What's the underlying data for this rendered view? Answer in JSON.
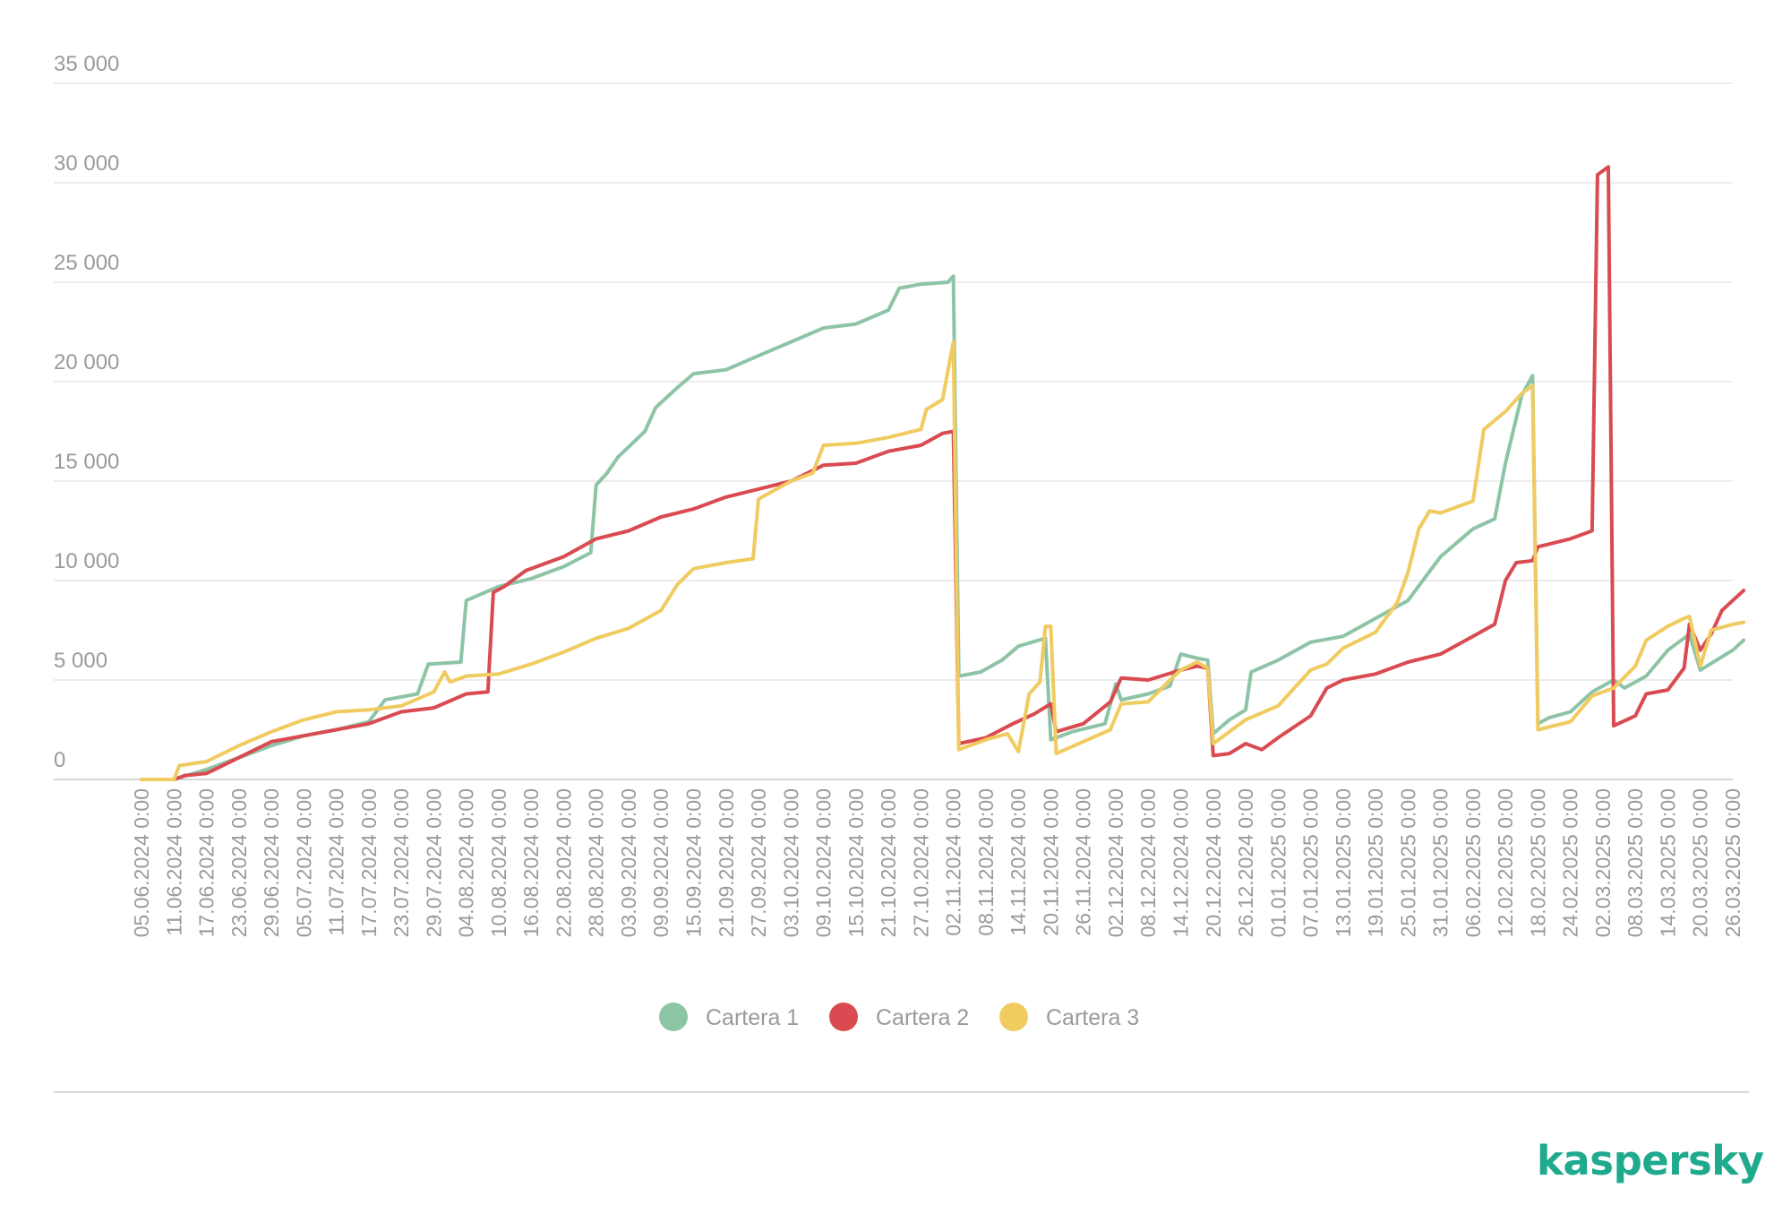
{
  "colors": {
    "background": "#ffffff",
    "grid": "#e6e6e6",
    "text": "#9a9a9a",
    "brand": "#1faa8e"
  },
  "brand": {
    "logo_text": "kaspersky"
  },
  "chart_data": {
    "type": "line",
    "title": "",
    "xlabel": "",
    "ylabel": "",
    "ylim": [
      0,
      35000
    ],
    "grid": true,
    "legend_position": "bottom-center",
    "y_ticks": [
      {
        "value": 0,
        "label": "0"
      },
      {
        "value": 5000,
        "label": "5 000"
      },
      {
        "value": 10000,
        "label": "10 000"
      },
      {
        "value": 15000,
        "label": "15 000"
      },
      {
        "value": 20000,
        "label": "20 000"
      },
      {
        "value": 25000,
        "label": "25 000"
      },
      {
        "value": 30000,
        "label": "30 000"
      },
      {
        "value": 35000,
        "label": "35 000"
      }
    ],
    "x_ticks": [
      "05.06.2024 0:00",
      "11.06.2024 0:00",
      "17.06.2024 0:00",
      "23.06.2024 0:00",
      "29.06.2024 0:00",
      "05.07.2024 0:00",
      "11.07.2024 0:00",
      "17.07.2024 0:00",
      "23.07.2024 0:00",
      "29.07.2024 0:00",
      "04.08.2024 0:00",
      "10.08.2024 0:00",
      "16.08.2024 0:00",
      "22.08.2024 0:00",
      "28.08.2024 0:00",
      "03.09.2024 0:00",
      "09.09.2024 0:00",
      "15.09.2024 0:00",
      "21.09.2024 0:00",
      "27.09.2024 0:00",
      "03.10.2024 0:00",
      "09.10.2024 0:00",
      "15.10.2024 0:00",
      "21.10.2024 0:00",
      "27.10.2024 0:00",
      "02.11.2024 0:00",
      "08.11.2024 0:00",
      "14.11.2024 0:00",
      "20.11.2024 0:00",
      "26.11.2024 0:00",
      "02.12.2024 0:00",
      "08.12.2024 0:00",
      "14.12.2024 0:00",
      "20.12.2024 0:00",
      "26.12.2024 0:00",
      "01.01.2025 0:00",
      "07.01.2025 0:00",
      "13.01.2025 0:00",
      "19.01.2025 0:00",
      "25.01.2025 0:00",
      "31.01.2025 0:00",
      "06.02.2025 0:00",
      "12.02.2025 0:00",
      "18.02.2025 0:00",
      "24.02.2025 0:00",
      "02.03.2025 0:00",
      "08.03.2025 0:00",
      "14.03.2025 0:00",
      "20.03.2025 0:00",
      "26.03.2025 0:00"
    ],
    "categories": [
      "05.06.2024",
      "11.06.2024",
      "17.06.2024",
      "23.06.2024",
      "29.06.2024",
      "05.07.2024",
      "11.07.2024",
      "17.07.2024",
      "23.07.2024",
      "29.07.2024",
      "04.08.2024",
      "10.08.2024",
      "16.08.2024",
      "22.08.2024",
      "28.08.2024",
      "03.09.2024",
      "09.09.2024",
      "15.09.2024",
      "21.09.2024",
      "27.09.2024",
      "03.10.2024",
      "09.10.2024",
      "15.10.2024",
      "21.10.2024",
      "27.10.2024",
      "02.11.2024",
      "08.11.2024",
      "14.11.2024",
      "20.11.2024",
      "26.11.2024",
      "02.12.2024",
      "08.12.2024",
      "14.12.2024",
      "20.12.2024",
      "26.12.2024",
      "01.01.2025",
      "07.01.2025",
      "13.01.2025",
      "19.01.2025",
      "25.01.2025",
      "31.01.2025",
      "06.02.2025",
      "12.02.2025",
      "18.02.2025",
      "24.02.2025",
      "02.03.2025",
      "08.03.2025",
      "14.03.2025",
      "20.03.2025",
      "26.03.2025"
    ],
    "series": [
      {
        "name": "Cartera 1",
        "color": "#8ec4a6",
        "points": [
          [
            "05.06.2024",
            0
          ],
          [
            "11.06.2024",
            0
          ],
          [
            "17.06.2024",
            500
          ],
          [
            "23.06.2024",
            1100
          ],
          [
            "29.06.2024",
            1700
          ],
          [
            "05.07.2024",
            2200
          ],
          [
            "11.07.2024",
            2500
          ],
          [
            "17.07.2024",
            2900
          ],
          [
            "20.07.2024",
            4000
          ],
          [
            "26.07.2024",
            4300
          ],
          [
            "28.07.2024",
            5800
          ],
          [
            "03.08.2024",
            5900
          ],
          [
            "04.08.2024",
            9000
          ],
          [
            "10.08.2024",
            9700
          ],
          [
            "16.08.2024",
            10100
          ],
          [
            "22.08.2024",
            10700
          ],
          [
            "27.08.2024",
            11400
          ],
          [
            "28.08.2024",
            14800
          ],
          [
            "30.08.2024",
            15400
          ],
          [
            "01.09.2024",
            16200
          ],
          [
            "06.09.2024",
            17500
          ],
          [
            "08.09.2024",
            18700
          ],
          [
            "12.09.2024",
            19700
          ],
          [
            "15.09.2024",
            20400
          ],
          [
            "21.09.2024",
            20600
          ],
          [
            "27.09.2024",
            21300
          ],
          [
            "03.10.2024",
            22000
          ],
          [
            "09.10.2024",
            22700
          ],
          [
            "15.10.2024",
            22900
          ],
          [
            "21.10.2024",
            23600
          ],
          [
            "23.10.2024",
            24700
          ],
          [
            "27.10.2024",
            24900
          ],
          [
            "01.11.2024",
            25000
          ],
          [
            "02.11.2024",
            25300
          ],
          [
            "03.11.2024",
            5200
          ],
          [
            "07.11.2024",
            5400
          ],
          [
            "11.11.2024",
            6000
          ],
          [
            "14.11.2024",
            6700
          ],
          [
            "19.11.2024",
            7100
          ],
          [
            "20.11.2024",
            2000
          ],
          [
            "24.11.2024",
            2400
          ],
          [
            "30.11.2024",
            2800
          ],
          [
            "02.12.2024",
            4800
          ],
          [
            "03.12.2024",
            4000
          ],
          [
            "08.12.2024",
            4300
          ],
          [
            "12.12.2024",
            4700
          ],
          [
            "14.12.2024",
            6300
          ],
          [
            "17.12.2024",
            6100
          ],
          [
            "19.12.2024",
            6000
          ],
          [
            "20.12.2024",
            2300
          ],
          [
            "23.12.2024",
            3000
          ],
          [
            "26.12.2024",
            3500
          ],
          [
            "27.12.2024",
            5400
          ],
          [
            "01.01.2025",
            6000
          ],
          [
            "07.01.2025",
            6900
          ],
          [
            "13.01.2025",
            7200
          ],
          [
            "19.01.2025",
            8100
          ],
          [
            "25.01.2025",
            9000
          ],
          [
            "31.01.2025",
            11200
          ],
          [
            "06.02.2025",
            12600
          ],
          [
            "10.02.2025",
            13100
          ],
          [
            "12.02.2025",
            15900
          ],
          [
            "15.02.2025",
            19300
          ],
          [
            "17.02.2025",
            20300
          ],
          [
            "18.02.2025",
            2800
          ],
          [
            "20.02.2025",
            3100
          ],
          [
            "24.02.2025",
            3400
          ],
          [
            "28.02.2025",
            4400
          ],
          [
            "04.03.2025",
            5000
          ],
          [
            "06.03.2025",
            4600
          ],
          [
            "10.03.2025",
            5200
          ],
          [
            "14.03.2025",
            6500
          ],
          [
            "18.03.2025",
            7300
          ],
          [
            "20.03.2025",
            5500
          ],
          [
            "26.03.2025",
            6500
          ],
          [
            "28.03.2025",
            7000
          ]
        ]
      },
      {
        "name": "Cartera 2",
        "color": "#d94b50",
        "points": [
          [
            "05.06.2024",
            0
          ],
          [
            "11.06.2024",
            0
          ],
          [
            "13.06.2024",
            200
          ],
          [
            "17.06.2024",
            300
          ],
          [
            "23.06.2024",
            1100
          ],
          [
            "29.06.2024",
            1900
          ],
          [
            "05.07.2024",
            2200
          ],
          [
            "11.07.2024",
            2500
          ],
          [
            "17.07.2024",
            2800
          ],
          [
            "23.07.2024",
            3400
          ],
          [
            "29.07.2024",
            3600
          ],
          [
            "04.08.2024",
            4300
          ],
          [
            "08.08.2024",
            4400
          ],
          [
            "09.08.2024",
            9400
          ],
          [
            "11.08.2024",
            9700
          ],
          [
            "15.08.2024",
            10500
          ],
          [
            "22.08.2024",
            11200
          ],
          [
            "28.08.2024",
            12100
          ],
          [
            "03.09.2024",
            12500
          ],
          [
            "09.09.2024",
            13200
          ],
          [
            "15.09.2024",
            13600
          ],
          [
            "21.09.2024",
            14200
          ],
          [
            "27.09.2024",
            14600
          ],
          [
            "03.10.2024",
            15000
          ],
          [
            "09.10.2024",
            15800
          ],
          [
            "15.10.2024",
            15900
          ],
          [
            "21.10.2024",
            16500
          ],
          [
            "27.10.2024",
            16800
          ],
          [
            "31.10.2024",
            17400
          ],
          [
            "02.11.2024",
            17500
          ],
          [
            "03.11.2024",
            1800
          ],
          [
            "08.11.2024",
            2100
          ],
          [
            "13.11.2024",
            2800
          ],
          [
            "17.11.2024",
            3300
          ],
          [
            "20.11.2024",
            3800
          ],
          [
            "21.11.2024",
            2400
          ],
          [
            "26.11.2024",
            2800
          ],
          [
            "01.12.2024",
            3900
          ],
          [
            "03.12.2024",
            5100
          ],
          [
            "08.12.2024",
            5000
          ],
          [
            "14.12.2024",
            5500
          ],
          [
            "17.12.2024",
            5700
          ],
          [
            "19.12.2024",
            5600
          ],
          [
            "20.12.2024",
            1200
          ],
          [
            "23.12.2024",
            1300
          ],
          [
            "26.12.2024",
            1800
          ],
          [
            "29.12.2024",
            1500
          ],
          [
            "01.01.2025",
            2100
          ],
          [
            "07.01.2025",
            3200
          ],
          [
            "10.01.2025",
            4600
          ],
          [
            "13.01.2025",
            5000
          ],
          [
            "19.01.2025",
            5300
          ],
          [
            "25.01.2025",
            5900
          ],
          [
            "31.01.2025",
            6300
          ],
          [
            "06.02.2025",
            7200
          ],
          [
            "10.02.2025",
            7800
          ],
          [
            "12.02.2025",
            10000
          ],
          [
            "14.02.2025",
            10900
          ],
          [
            "17.02.2025",
            11000
          ],
          [
            "18.02.2025",
            11700
          ],
          [
            "24.02.2025",
            12100
          ],
          [
            "28.02.2025",
            12500
          ],
          [
            "01.03.2025",
            30400
          ],
          [
            "03.03.2025",
            30800
          ],
          [
            "04.03.2025",
            2700
          ],
          [
            "08.03.2025",
            3200
          ],
          [
            "10.03.2025",
            4300
          ],
          [
            "14.03.2025",
            4500
          ],
          [
            "17.03.2025",
            5600
          ],
          [
            "18.03.2025",
            7800
          ],
          [
            "20.03.2025",
            6500
          ],
          [
            "22.03.2025",
            7300
          ],
          [
            "24.03.2025",
            8500
          ],
          [
            "26.03.2025",
            9000
          ],
          [
            "28.03.2025",
            9500
          ]
        ]
      },
      {
        "name": "Cartera 3",
        "color": "#f0cb60",
        "points": [
          [
            "05.06.2024",
            0
          ],
          [
            "11.06.2024",
            0
          ],
          [
            "12.06.2024",
            700
          ],
          [
            "17.06.2024",
            900
          ],
          [
            "23.06.2024",
            1700
          ],
          [
            "29.06.2024",
            2400
          ],
          [
            "05.07.2024",
            3000
          ],
          [
            "11.07.2024",
            3400
          ],
          [
            "17.07.2024",
            3500
          ],
          [
            "23.07.2024",
            3700
          ],
          [
            "29.07.2024",
            4400
          ],
          [
            "31.07.2024",
            5400
          ],
          [
            "01.08.2024",
            4900
          ],
          [
            "04.08.2024",
            5200
          ],
          [
            "10.08.2024",
            5300
          ],
          [
            "16.08.2024",
            5800
          ],
          [
            "22.08.2024",
            6400
          ],
          [
            "28.08.2024",
            7100
          ],
          [
            "03.09.2024",
            7600
          ],
          [
            "09.09.2024",
            8500
          ],
          [
            "12.09.2024",
            9800
          ],
          [
            "15.09.2024",
            10600
          ],
          [
            "21.09.2024",
            10900
          ],
          [
            "26.09.2024",
            11100
          ],
          [
            "27.09.2024",
            14100
          ],
          [
            "03.10.2024",
            15000
          ],
          [
            "07.10.2024",
            15400
          ],
          [
            "09.10.2024",
            16800
          ],
          [
            "15.10.2024",
            16900
          ],
          [
            "21.10.2024",
            17200
          ],
          [
            "27.10.2024",
            17600
          ],
          [
            "28.10.2024",
            18600
          ],
          [
            "31.10.2024",
            19100
          ],
          [
            "02.11.2024",
            22000
          ],
          [
            "03.11.2024",
            1500
          ],
          [
            "08.11.2024",
            2000
          ],
          [
            "12.11.2024",
            2300
          ],
          [
            "14.11.2024",
            1400
          ],
          [
            "16.11.2024",
            4300
          ],
          [
            "18.11.2024",
            4900
          ],
          [
            "19.11.2024",
            7700
          ],
          [
            "20.11.2024",
            7700
          ],
          [
            "21.11.2024",
            1300
          ],
          [
            "26.11.2024",
            1900
          ],
          [
            "01.12.2024",
            2500
          ],
          [
            "03.12.2024",
            3800
          ],
          [
            "08.12.2024",
            3900
          ],
          [
            "12.12.2024",
            5000
          ],
          [
            "14.12.2024",
            5500
          ],
          [
            "17.12.2024",
            5900
          ],
          [
            "19.12.2024",
            5600
          ],
          [
            "20.12.2024",
            1800
          ],
          [
            "26.12.2024",
            3000
          ],
          [
            "01.01.2025",
            3700
          ],
          [
            "04.01.2025",
            4600
          ],
          [
            "07.01.2025",
            5500
          ],
          [
            "10.01.2025",
            5800
          ],
          [
            "13.01.2025",
            6600
          ],
          [
            "19.01.2025",
            7400
          ],
          [
            "23.01.2025",
            8900
          ],
          [
            "25.01.2025",
            10400
          ],
          [
            "27.01.2025",
            12600
          ],
          [
            "29.01.2025",
            13500
          ],
          [
            "31.01.2025",
            13400
          ],
          [
            "06.02.2025",
            14000
          ],
          [
            "08.02.2025",
            17600
          ],
          [
            "12.02.2025",
            18500
          ],
          [
            "15.02.2025",
            19400
          ],
          [
            "17.02.2025",
            19800
          ],
          [
            "18.02.2025",
            2500
          ],
          [
            "24.02.2025",
            2900
          ],
          [
            "28.02.2025",
            4200
          ],
          [
            "04.03.2025",
            4600
          ],
          [
            "08.03.2025",
            5700
          ],
          [
            "10.03.2025",
            7000
          ],
          [
            "14.03.2025",
            7700
          ],
          [
            "17.03.2025",
            8100
          ],
          [
            "18.03.2025",
            8200
          ],
          [
            "20.03.2025",
            5700
          ],
          [
            "22.03.2025",
            7500
          ],
          [
            "26.03.2025",
            7800
          ],
          [
            "28.03.2025",
            7900
          ]
        ]
      }
    ]
  }
}
